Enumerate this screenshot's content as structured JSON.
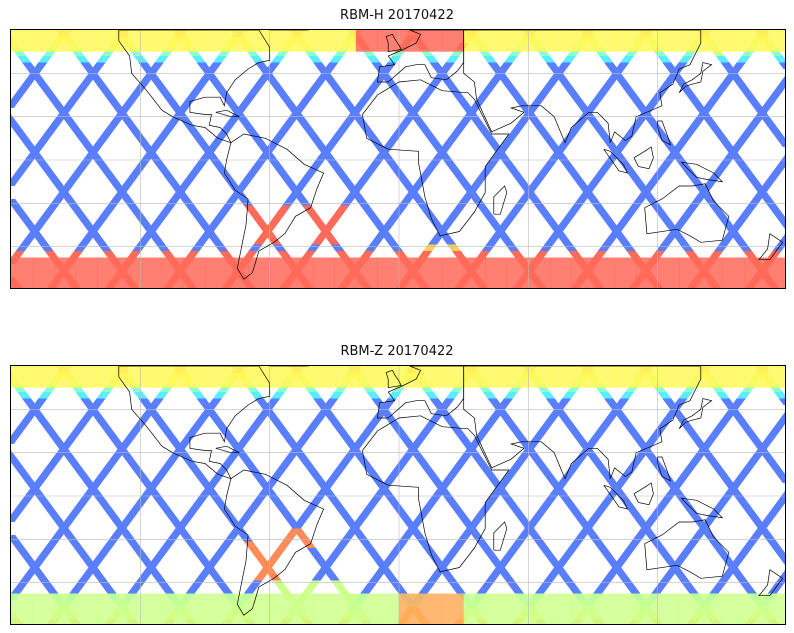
{
  "chart_data": [
    {
      "type": "heatmap",
      "title": "RBM-H 20170422",
      "xlabel": "",
      "ylabel": "",
      "grid": true,
      "legend": "none",
      "colormap": "jet",
      "hot_regions": [
        {
          "lon": [
            -180,
            180
          ],
          "lat": [
            -60,
            -42
          ],
          "level": 0.85
        },
        {
          "lon": [
            -20,
            30
          ],
          "lat": [
            50,
            58
          ],
          "level": 0.85
        },
        {
          "lon": [
            -120,
            -40
          ],
          "lat": [
            52,
            58
          ],
          "level": 0.6
        },
        {
          "lon": [
            -70,
            -20
          ],
          "lat": [
            -40,
            -20
          ],
          "level": 0.85
        },
        {
          "lon": [
            0,
            40
          ],
          "lat": [
            -55,
            -40
          ],
          "level": 0.7
        },
        {
          "lon": [
            140,
            150
          ],
          "lat": [
            40,
            56
          ],
          "level": 0.55
        }
      ]
    },
    {
      "type": "heatmap",
      "title": "RBM-Z 20170422",
      "xlabel": "",
      "ylabel": "",
      "grid": true,
      "legend": "none",
      "colormap": "jet",
      "hot_regions": [
        {
          "lon": [
            -180,
            180
          ],
          "lat": [
            -60,
            -50
          ],
          "level": 0.45
        },
        {
          "lon": [
            -70,
            -40
          ],
          "lat": [
            -40,
            -15
          ],
          "level": 0.8
        },
        {
          "lon": [
            -60,
            -20
          ],
          "lat": [
            -55,
            -40
          ],
          "level": 0.55
        },
        {
          "lon": [
            0,
            30
          ],
          "lat": [
            -58,
            -50
          ],
          "level": 0.75
        },
        {
          "lon": [
            -120,
            -90
          ],
          "lat": [
            50,
            58
          ],
          "level": 0.6
        }
      ]
    }
  ],
  "colors": {
    "swath_base": "#6666ee",
    "coast": "#000000",
    "grid": "#bbbbbb"
  }
}
